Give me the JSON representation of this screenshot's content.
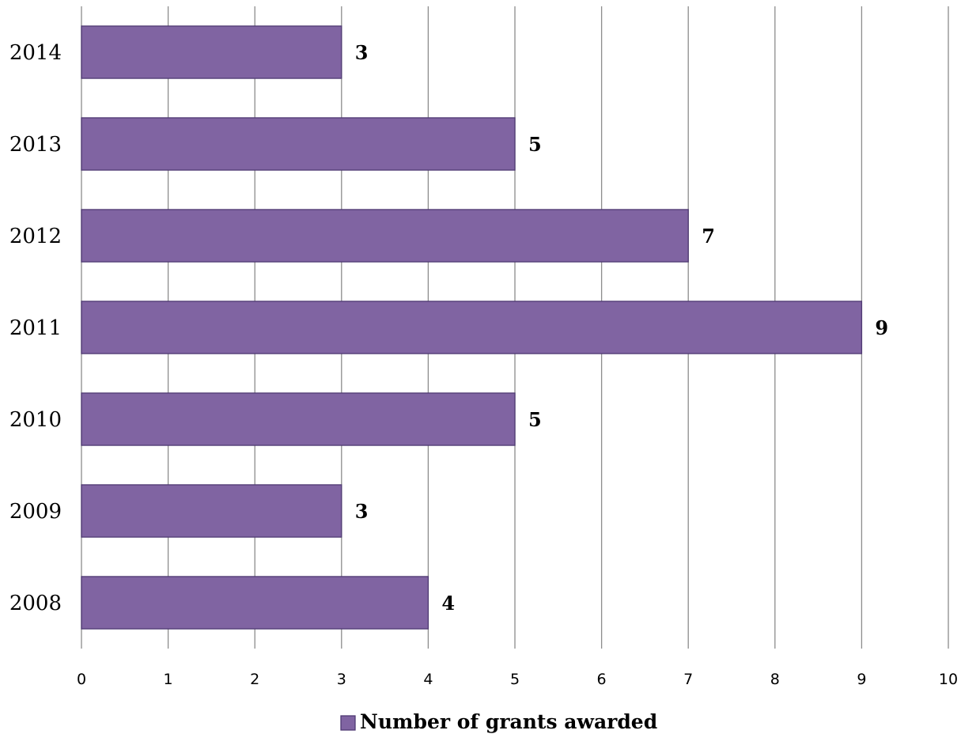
{
  "chart_data": {
    "type": "bar",
    "orientation": "horizontal",
    "categories": [
      "2008",
      "2009",
      "2010",
      "2011",
      "2012",
      "2013",
      "2014"
    ],
    "series": [
      {
        "name": "Number of grants awarded",
        "values": [
          4,
          3,
          5,
          9,
          7,
          5,
          3
        ]
      }
    ],
    "xlim": [
      0,
      10
    ],
    "x_ticks": [
      "0",
      "1",
      "2",
      "3",
      "4",
      "5",
      "6",
      "7",
      "8",
      "9",
      "10"
    ],
    "data_labels": [
      "4",
      "3",
      "5",
      "9",
      "7",
      "5",
      "3"
    ],
    "grid": "vertical",
    "legend_position": "bottom",
    "bar_color": "#8064a2"
  }
}
